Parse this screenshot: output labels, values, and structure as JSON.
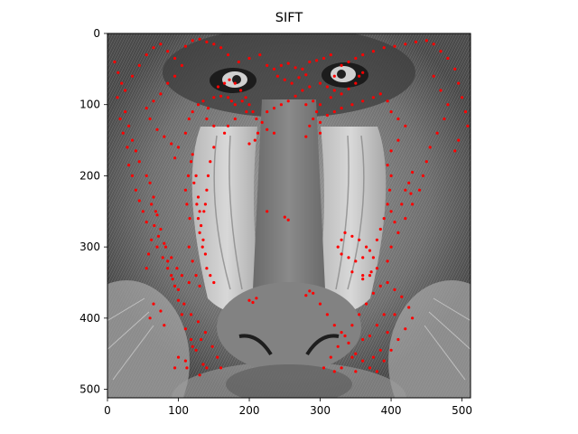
{
  "title": "SIFT",
  "colors": {
    "keypoint": "#ff0000",
    "axes": "#000000",
    "background": "#ffffff"
  },
  "image": {
    "subject": "grayscale mandrill face",
    "width": 512,
    "height": 512
  },
  "axes": {
    "x_ticks": [
      0,
      100,
      200,
      300,
      400,
      500
    ],
    "y_ticks": [
      0,
      100,
      200,
      300,
      400,
      500
    ],
    "xlim": [
      0,
      512
    ],
    "ylim": [
      512,
      0
    ]
  },
  "keypoints": [
    [
      10,
      40
    ],
    [
      15,
      55
    ],
    [
      20,
      70
    ],
    [
      25,
      110
    ],
    [
      30,
      130
    ],
    [
      35,
      150
    ],
    [
      40,
      165
    ],
    [
      45,
      180
    ],
    [
      55,
      200
    ],
    [
      60,
      210
    ],
    [
      65,
      230
    ],
    [
      70,
      255
    ],
    [
      75,
      275
    ],
    [
      80,
      295
    ],
    [
      85,
      320
    ],
    [
      90,
      340
    ],
    [
      95,
      355
    ],
    [
      100,
      375
    ],
    [
      105,
      395
    ],
    [
      110,
      415
    ],
    [
      118,
      430
    ],
    [
      125,
      445
    ],
    [
      135,
      465
    ],
    [
      110,
      460
    ],
    [
      100,
      455
    ],
    [
      95,
      470
    ],
    [
      80,
      410
    ],
    [
      75,
      390
    ],
    [
      65,
      380
    ],
    [
      60,
      400
    ],
    [
      55,
      330
    ],
    [
      58,
      310
    ],
    [
      62,
      290
    ],
    [
      70,
      300
    ],
    [
      78,
      315
    ],
    [
      85,
      330
    ],
    [
      92,
      345
    ],
    [
      100,
      360
    ],
    [
      108,
      380
    ],
    [
      118,
      395
    ],
    [
      128,
      405
    ],
    [
      138,
      420
    ],
    [
      148,
      440
    ],
    [
      155,
      455
    ],
    [
      160,
      470
    ],
    [
      140,
      470
    ],
    [
      130,
      480
    ],
    [
      112,
      470
    ],
    [
      120,
      440
    ],
    [
      132,
      430
    ],
    [
      120,
      170
    ],
    [
      125,
      200
    ],
    [
      128,
      230
    ],
    [
      130,
      250
    ],
    [
      132,
      270
    ],
    [
      135,
      290
    ],
    [
      138,
      310
    ],
    [
      140,
      330
    ],
    [
      145,
      340
    ],
    [
      150,
      350
    ],
    [
      118,
      180
    ],
    [
      122,
      210
    ],
    [
      126,
      240
    ],
    [
      128,
      260
    ],
    [
      130,
      280
    ],
    [
      134,
      300
    ],
    [
      116,
      260
    ],
    [
      112,
      240
    ],
    [
      110,
      220
    ],
    [
      114,
      200
    ],
    [
      110,
      140
    ],
    [
      115,
      120
    ],
    [
      120,
      110
    ],
    [
      128,
      100
    ],
    [
      135,
      95
    ],
    [
      142,
      105
    ],
    [
      150,
      90
    ],
    [
      156,
      75
    ],
    [
      165,
      70
    ],
    [
      172,
      65
    ],
    [
      180,
      70
    ],
    [
      188,
      80
    ],
    [
      195,
      90
    ],
    [
      200,
      100
    ],
    [
      205,
      110
    ],
    [
      210,
      120
    ],
    [
      212,
      140
    ],
    [
      208,
      150
    ],
    [
      200,
      155
    ],
    [
      180,
      100
    ],
    [
      160,
      88
    ],
    [
      170,
      90
    ],
    [
      175,
      95
    ],
    [
      190,
      95
    ],
    [
      196,
      110
    ],
    [
      180,
      120
    ],
    [
      170,
      130
    ],
    [
      165,
      140
    ],
    [
      150,
      130
    ],
    [
      140,
      120
    ],
    [
      225,
      45
    ],
    [
      235,
      50
    ],
    [
      245,
      45
    ],
    [
      255,
      42
    ],
    [
      265,
      48
    ],
    [
      275,
      50
    ],
    [
      285,
      40
    ],
    [
      295,
      38
    ],
    [
      305,
      35
    ],
    [
      315,
      30
    ],
    [
      215,
      30
    ],
    [
      200,
      35
    ],
    [
      185,
      40
    ],
    [
      170,
      30
    ],
    [
      160,
      20
    ],
    [
      150,
      15
    ],
    [
      140,
      12
    ],
    [
      130,
      8
    ],
    [
      120,
      10
    ],
    [
      110,
      18
    ],
    [
      330,
      45
    ],
    [
      340,
      40
    ],
    [
      350,
      35
    ],
    [
      360,
      30
    ],
    [
      375,
      25
    ],
    [
      390,
      20
    ],
    [
      405,
      18
    ],
    [
      420,
      15
    ],
    [
      435,
      12
    ],
    [
      450,
      10
    ],
    [
      460,
      15
    ],
    [
      470,
      25
    ],
    [
      480,
      35
    ],
    [
      490,
      50
    ],
    [
      495,
      70
    ],
    [
      500,
      90
    ],
    [
      505,
      110
    ],
    [
      508,
      130
    ],
    [
      495,
      150
    ],
    [
      490,
      165
    ],
    [
      300,
      70
    ],
    [
      310,
      75
    ],
    [
      320,
      80
    ],
    [
      330,
      85
    ],
    [
      340,
      78
    ],
    [
      350,
      70
    ],
    [
      355,
      60
    ],
    [
      360,
      55
    ],
    [
      320,
      60
    ],
    [
      315,
      90
    ],
    [
      300,
      100
    ],
    [
      295,
      110
    ],
    [
      290,
      120
    ],
    [
      300,
      125
    ],
    [
      310,
      115
    ],
    [
      320,
      110
    ],
    [
      330,
      105
    ],
    [
      345,
      100
    ],
    [
      360,
      95
    ],
    [
      375,
      90
    ],
    [
      385,
      85
    ],
    [
      395,
      95
    ],
    [
      400,
      110
    ],
    [
      410,
      120
    ],
    [
      420,
      130
    ],
    [
      410,
      150
    ],
    [
      400,
      165
    ],
    [
      395,
      185
    ],
    [
      400,
      200
    ],
    [
      398,
      220
    ],
    [
      395,
      240
    ],
    [
      390,
      260
    ],
    [
      385,
      275
    ],
    [
      380,
      290
    ],
    [
      370,
      305
    ],
    [
      360,
      315
    ],
    [
      350,
      320
    ],
    [
      340,
      315
    ],
    [
      330,
      310
    ],
    [
      325,
      300
    ],
    [
      330,
      290
    ],
    [
      335,
      280
    ],
    [
      345,
      285
    ],
    [
      355,
      290
    ],
    [
      365,
      300
    ],
    [
      375,
      315
    ],
    [
      380,
      330
    ],
    [
      370,
      340
    ],
    [
      360,
      345
    ],
    [
      345,
      335
    ],
    [
      400,
      250
    ],
    [
      405,
      265
    ],
    [
      410,
      280
    ],
    [
      400,
      300
    ],
    [
      395,
      320
    ],
    [
      415,
      240
    ],
    [
      420,
      220
    ],
    [
      425,
      210
    ],
    [
      430,
      195
    ],
    [
      428,
      225
    ],
    [
      290,
      365
    ],
    [
      300,
      380
    ],
    [
      310,
      395
    ],
    [
      320,
      410
    ],
    [
      330,
      420
    ],
    [
      340,
      435
    ],
    [
      350,
      450
    ],
    [
      360,
      460
    ],
    [
      370,
      470
    ],
    [
      380,
      475
    ],
    [
      390,
      460
    ],
    [
      400,
      445
    ],
    [
      410,
      430
    ],
    [
      420,
      415
    ],
    [
      430,
      400
    ],
    [
      425,
      385
    ],
    [
      415,
      370
    ],
    [
      405,
      360
    ],
    [
      395,
      350
    ],
    [
      385,
      355
    ],
    [
      375,
      365
    ],
    [
      365,
      380
    ],
    [
      355,
      395
    ],
    [
      345,
      410
    ],
    [
      335,
      425
    ],
    [
      325,
      440
    ],
    [
      315,
      455
    ],
    [
      305,
      470
    ],
    [
      330,
      470
    ],
    [
      350,
      475
    ],
    [
      370,
      425
    ],
    [
      380,
      410
    ],
    [
      390,
      395
    ],
    [
      360,
      430
    ],
    [
      345,
      455
    ],
    [
      320,
      475
    ],
    [
      405,
      395
    ],
    [
      395,
      420
    ],
    [
      385,
      445
    ],
    [
      375,
      455
    ],
    [
      200,
      375
    ],
    [
      205,
      378
    ],
    [
      210,
      372
    ],
    [
      280,
      368
    ],
    [
      285,
      362
    ],
    [
      250,
      258
    ],
    [
      255,
      262
    ],
    [
      225,
      250
    ],
    [
      360,
      340
    ],
    [
      372,
      335
    ],
    [
      460,
      60
    ],
    [
      470,
      80
    ],
    [
      480,
      100
    ],
    [
      475,
      120
    ],
    [
      465,
      140
    ],
    [
      455,
      160
    ],
    [
      450,
      180
    ],
    [
      445,
      200
    ],
    [
      440,
      220
    ],
    [
      430,
      240
    ],
    [
      420,
      260
    ],
    [
      150,
      160
    ],
    [
      145,
      180
    ],
    [
      142,
      200
    ],
    [
      140,
      220
    ],
    [
      138,
      240
    ],
    [
      136,
      250
    ],
    [
      115,
      300
    ],
    [
      120,
      320
    ],
    [
      125,
      340
    ],
    [
      130,
      355
    ],
    [
      115,
      350
    ],
    [
      105,
      340
    ],
    [
      98,
      330
    ],
    [
      90,
      315
    ],
    [
      82,
      300
    ],
    [
      72,
      285
    ],
    [
      66,
      270
    ],
    [
      68,
      250
    ],
    [
      62,
      240
    ],
    [
      40,
      220
    ],
    [
      45,
      235
    ],
    [
      50,
      250
    ],
    [
      55,
      265
    ],
    [
      35,
      200
    ],
    [
      30,
      185
    ],
    [
      28,
      160
    ],
    [
      22,
      140
    ],
    [
      18,
      120
    ],
    [
      14,
      90
    ],
    [
      25,
      80
    ],
    [
      35,
      60
    ],
    [
      45,
      45
    ],
    [
      55,
      30
    ],
    [
      65,
      20
    ],
    [
      75,
      15
    ],
    [
      85,
      25
    ],
    [
      95,
      35
    ],
    [
      105,
      45
    ],
    [
      95,
      60
    ],
    [
      85,
      70
    ],
    [
      75,
      85
    ],
    [
      65,
      95
    ],
    [
      55,
      105
    ],
    [
      60,
      120
    ],
    [
      70,
      135
    ],
    [
      80,
      145
    ],
    [
      90,
      155
    ],
    [
      100,
      160
    ],
    [
      95,
      175
    ],
    [
      240,
      60
    ],
    [
      250,
      65
    ],
    [
      260,
      70
    ],
    [
      270,
      62
    ],
    [
      280,
      58
    ],
    [
      285,
      75
    ],
    [
      275,
      80
    ],
    [
      265,
      88
    ],
    [
      255,
      95
    ],
    [
      245,
      100
    ],
    [
      235,
      105
    ],
    [
      225,
      110
    ],
    [
      218,
      125
    ],
    [
      225,
      135
    ],
    [
      235,
      140
    ],
    [
      280,
      100
    ],
    [
      290,
      95
    ],
    [
      285,
      130
    ],
    [
      280,
      145
    ],
    [
      300,
      140
    ]
  ]
}
